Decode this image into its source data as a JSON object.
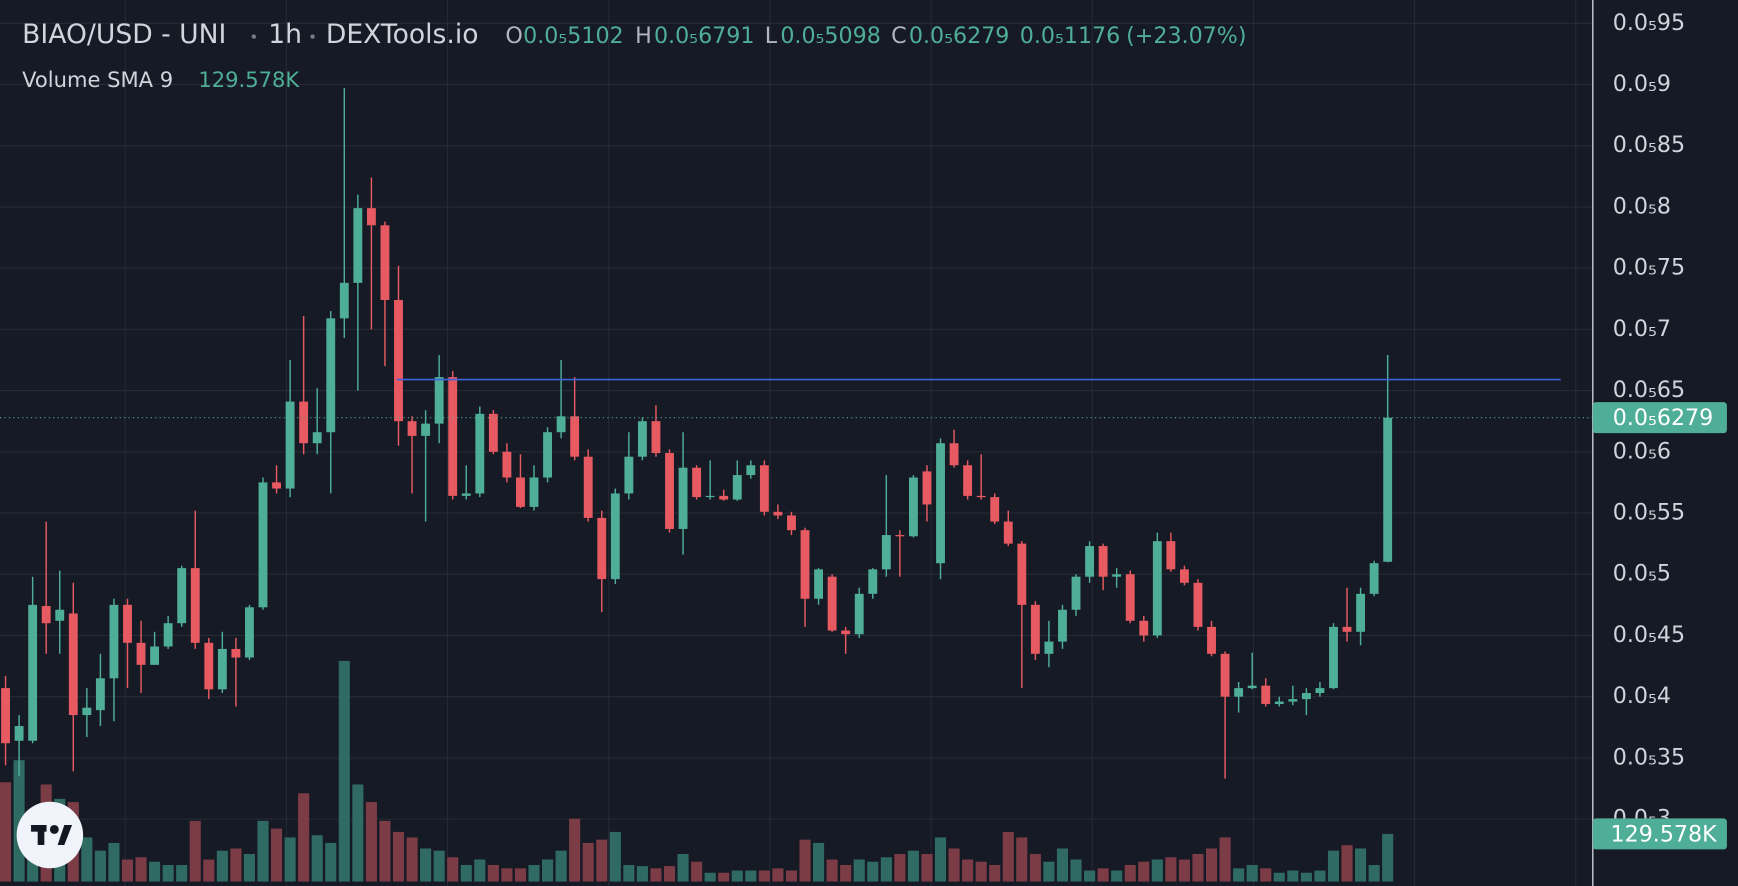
{
  "chart_data": {
    "type": "candlestick",
    "title": "BIAO/USD - UNI",
    "interval": "1h",
    "source": "DEXTools.io",
    "ohlc": [
      {
        "key": "O",
        "value": 5.102e-06,
        "label": "0.0₅5102"
      },
      {
        "key": "H",
        "value": 6.791e-06,
        "label": "0.0₅6791"
      },
      {
        "key": "L",
        "value": 5.098e-06,
        "label": "0.0₅5098"
      },
      {
        "key": "C",
        "value": 6.279e-06,
        "label": "0.0₅6279"
      }
    ],
    "change": {
      "value": 1.176e-06,
      "label": "0.0₅1176"
    },
    "change_percent": {
      "value": 23.07,
      "label": "(+23.07%)"
    },
    "volume_indicator": {
      "name": "Volume SMA 9",
      "value": 129578,
      "label": "129.578K"
    },
    "up_color": "#4fae98",
    "down_color": "#e85a61",
    "up_volume_color": "#2f6b62",
    "down_volume_color": "#7c3c46",
    "hline": {
      "value": 6.59e-06,
      "color": "#3d63dd"
    },
    "ylim": [
      2.49e-06,
      9.69e-06
    ],
    "yticks": [
      {
        "value": 9.5e-06,
        "label": "0.0₅95"
      },
      {
        "value": 9e-06,
        "label": "0.0₅9"
      },
      {
        "value": 8.5e-06,
        "label": "0.0₅85"
      },
      {
        "value": 8e-06,
        "label": "0.0₅8"
      },
      {
        "value": 7.5e-06,
        "label": "0.0₅75"
      },
      {
        "value": 7e-06,
        "label": "0.0₅7"
      },
      {
        "value": 6.5e-06,
        "label": "0.0₅65"
      },
      {
        "value": 6e-06,
        "label": "0.0₅6"
      },
      {
        "value": 5.5e-06,
        "label": "0.0₅55"
      },
      {
        "value": 5e-06,
        "label": "0.0₅5"
      },
      {
        "value": 4.5e-06,
        "label": "0.0₅45"
      },
      {
        "value": 4e-06,
        "label": "0.0₅4"
      },
      {
        "value": 3.5e-06,
        "label": "0.0₅35"
      },
      {
        "value": 3e-06,
        "label": "0.0₅3"
      }
    ],
    "y2lim": [
      0,
      600000
    ],
    "grid": true,
    "open": [
      4.07e-06,
      3.64e-06,
      3.64e-06,
      4.74e-06,
      4.62e-06,
      4.68e-06,
      3.85e-06,
      3.89e-06,
      4.15e-06,
      4.75e-06,
      4.44e-06,
      4.26e-06,
      4.41e-06,
      4.6e-06,
      5.05e-06,
      4.44e-06,
      4.06e-06,
      4.39e-06,
      4.32e-06,
      4.73e-06,
      5.75e-06,
      5.7e-06,
      6.41e-06,
      6.07e-06,
      6.16e-06,
      7.09e-06,
      7.38e-06,
      7.99e-06,
      7.85e-06,
      7.24e-06,
      6.25e-06,
      6.13e-06,
      6.23e-06,
      6.61e-06,
      5.64e-06,
      5.66e-06,
      6.31e-06,
      6e-06,
      5.79e-06,
      5.55e-06,
      5.79e-06,
      6.16e-06,
      6.29e-06,
      5.96e-06,
      5.46e-06,
      4.96e-06,
      5.66e-06,
      5.96e-06,
      6.25e-06,
      5.99e-06,
      5.37e-06,
      5.87e-06,
      5.63e-06,
      5.64e-06,
      5.61e-06,
      5.81e-06,
      5.89e-06,
      5.51e-06,
      5.48e-06,
      5.36e-06,
      4.8e-06,
      4.98e-06,
      4.54e-06,
      4.51e-06,
      4.84e-06,
      5.04e-06,
      5.32e-06,
      5.31e-06,
      5.84e-06,
      5.09e-06,
      6.07e-06,
      5.89e-06,
      5.64e-06,
      5.63e-06,
      5.43e-06,
      5.25e-06,
      4.75e-06,
      4.35e-06,
      4.45e-06,
      4.71e-06,
      4.98e-06,
      5.23e-06,
      4.98e-06,
      5e-06,
      4.62e-06,
      4.5e-06,
      5.27e-06,
      5.04e-06,
      4.93e-06,
      4.57e-06,
      4.35e-06,
      4e-06,
      4.07e-06,
      4.09e-06,
      3.94e-06,
      3.96e-06,
      3.98e-06,
      4.03e-06,
      4.07e-06,
      4.57e-06,
      4.53e-06,
      4.84e-06,
      5.102e-06
    ],
    "high": [
      4.17e-06,
      3.85e-06,
      4.98e-06,
      5.43e-06,
      5.03e-06,
      4.93e-06,
      4.07e-06,
      4.35e-06,
      4.8e-06,
      4.8e-06,
      4.62e-06,
      4.53e-06,
      4.66e-06,
      5.07e-06,
      5.52e-06,
      4.48e-06,
      4.53e-06,
      4.48e-06,
      4.75e-06,
      5.79e-06,
      5.89e-06,
      6.75e-06,
      7.11e-06,
      6.52e-06,
      7.15e-06,
      8.97e-06,
      8.1e-06,
      8.24e-06,
      7.88e-06,
      7.52e-06,
      6.29e-06,
      6.34e-06,
      6.79e-06,
      6.66e-06,
      5.89e-06,
      6.37e-06,
      6.34e-06,
      6.07e-06,
      5.98e-06,
      5.89e-06,
      6.2e-06,
      6.75e-06,
      6.61e-06,
      6.02e-06,
      5.52e-06,
      5.7e-06,
      6.16e-06,
      6.28e-06,
      6.38e-06,
      6.02e-06,
      6.16e-06,
      5.89e-06,
      5.93e-06,
      5.69e-06,
      5.93e-06,
      5.93e-06,
      5.93e-06,
      5.57e-06,
      5.51e-06,
      5.38e-06,
      5.05e-06,
      5e-06,
      4.57e-06,
      4.89e-06,
      5.05e-06,
      5.81e-06,
      5.36e-06,
      5.81e-06,
      5.89e-06,
      6.11e-06,
      6.18e-06,
      5.93e-06,
      5.98e-06,
      5.66e-06,
      5.52e-06,
      5.27e-06,
      4.78e-06,
      4.62e-06,
      4.75e-06,
      5e-06,
      5.27e-06,
      5.25e-06,
      5.05e-06,
      5.03e-06,
      4.66e-06,
      5.34e-06,
      5.34e-06,
      5.07e-06,
      4.96e-06,
      4.62e-06,
      4.37e-06,
      4.12e-06,
      4.36e-06,
      4.15e-06,
      4e-06,
      4.09e-06,
      4.07e-06,
      4.12e-06,
      4.6e-06,
      4.89e-06,
      4.89e-06,
      5.11e-06,
      6.791e-06
    ],
    "low": [
      3.44e-06,
      3.35e-06,
      3.62e-06,
      4.35e-06,
      4.35e-06,
      3.39e-06,
      3.67e-06,
      3.76e-06,
      3.8e-06,
      4.07e-06,
      4.03e-06,
      4.26e-06,
      4.39e-06,
      4.57e-06,
      4.39e-06,
      3.98e-06,
      4.03e-06,
      3.92e-06,
      4.3e-06,
      4.71e-06,
      5.66e-06,
      5.63e-06,
      5.98e-06,
      5.98e-06,
      5.66e-06,
      6.93e-06,
      6.5e-06,
      7e-06,
      6.7e-06,
      6.05e-06,
      5.66e-06,
      5.43e-06,
      6.07e-06,
      5.61e-06,
      5.61e-06,
      5.63e-06,
      5.98e-06,
      5.75e-06,
      5.54e-06,
      5.52e-06,
      5.75e-06,
      6.11e-06,
      5.93e-06,
      5.43e-06,
      4.69e-06,
      4.92e-06,
      5.61e-06,
      5.93e-06,
      5.96e-06,
      5.34e-06,
      5.16e-06,
      5.61e-06,
      5.61e-06,
      5.6e-06,
      5.6e-06,
      5.78e-06,
      5.48e-06,
      5.45e-06,
      5.32e-06,
      4.57e-06,
      4.75e-06,
      4.53e-06,
      4.35e-06,
      4.48e-06,
      4.8e-06,
      4.98e-06,
      4.98e-06,
      5.3e-06,
      5.43e-06,
      4.96e-06,
      5.87e-06,
      5.61e-06,
      5.61e-06,
      5.41e-06,
      5.23e-06,
      4.07e-06,
      4.3e-06,
      4.24e-06,
      4.39e-06,
      4.66e-06,
      4.93e-06,
      4.87e-06,
      4.89e-06,
      4.6e-06,
      4.45e-06,
      4.48e-06,
      5.02e-06,
      4.91e-06,
      4.54e-06,
      4.33e-06,
      3.33e-06,
      3.87e-06,
      4.06e-06,
      3.92e-06,
      3.92e-06,
      3.93e-06,
      3.85e-06,
      4e-06,
      4.06e-06,
      4.45e-06,
      4.42e-06,
      4.82e-06,
      5.098e-06
    ],
    "close": [
      3.62e-06,
      3.76e-06,
      4.75e-06,
      4.6e-06,
      4.71e-06,
      3.85e-06,
      3.91e-06,
      4.15e-06,
      4.75e-06,
      4.44e-06,
      4.26e-06,
      4.41e-06,
      4.6e-06,
      5.05e-06,
      4.44e-06,
      4.06e-06,
      4.39e-06,
      4.32e-06,
      4.73e-06,
      5.75e-06,
      5.7e-06,
      6.41e-06,
      6.07e-06,
      6.16e-06,
      7.09e-06,
      7.38e-06,
      7.99e-06,
      7.85e-06,
      7.24e-06,
      6.25e-06,
      6.13e-06,
      6.23e-06,
      6.61e-06,
      5.64e-06,
      5.66e-06,
      6.31e-06,
      6e-06,
      5.79e-06,
      5.55e-06,
      5.79e-06,
      6.16e-06,
      6.29e-06,
      5.96e-06,
      5.46e-06,
      4.96e-06,
      5.66e-06,
      5.96e-06,
      6.25e-06,
      5.99e-06,
      5.37e-06,
      5.87e-06,
      5.63e-06,
      5.64e-06,
      5.61e-06,
      5.81e-06,
      5.89e-06,
      5.51e-06,
      5.48e-06,
      5.36e-06,
      4.8e-06,
      5.04e-06,
      4.54e-06,
      4.51e-06,
      4.84e-06,
      5.04e-06,
      5.32e-06,
      5.31e-06,
      5.79e-06,
      5.57e-06,
      6.07e-06,
      5.89e-06,
      5.64e-06,
      5.63e-06,
      5.43e-06,
      5.25e-06,
      4.75e-06,
      4.35e-06,
      4.45e-06,
      4.71e-06,
      4.98e-06,
      5.23e-06,
      4.98e-06,
      5e-06,
      4.62e-06,
      4.5e-06,
      5.27e-06,
      5.04e-06,
      4.93e-06,
      4.57e-06,
      4.35e-06,
      4e-06,
      4.07e-06,
      4.09e-06,
      3.94e-06,
      3.96e-06,
      3.98e-06,
      4.03e-06,
      4.07e-06,
      4.57e-06,
      4.53e-06,
      4.84e-06,
      5.09e-06,
      6.279e-06
    ],
    "volume": [
      270000,
      330000,
      180000,
      264000,
      225000,
      216000,
      120000,
      84000,
      105000,
      60000,
      66000,
      54000,
      45000,
      45000,
      165000,
      60000,
      84000,
      90000,
      75000,
      165000,
      144000,
      120000,
      240000,
      126000,
      105000,
      600000,
      264000,
      216000,
      165000,
      135000,
      120000,
      90000,
      84000,
      66000,
      45000,
      60000,
      45000,
      36000,
      36000,
      45000,
      60000,
      84000,
      171000,
      105000,
      114000,
      135000,
      45000,
      42000,
      36000,
      42000,
      75000,
      54000,
      24000,
      24000,
      30000,
      30000,
      30000,
      36000,
      30000,
      114000,
      105000,
      60000,
      45000,
      60000,
      54000,
      66000,
      75000,
      84000,
      75000,
      120000,
      90000,
      60000,
      54000,
      45000,
      135000,
      120000,
      75000,
      54000,
      90000,
      60000,
      30000,
      36000,
      30000,
      45000,
      54000,
      60000,
      66000,
      60000,
      75000,
      90000,
      120000,
      36000,
      45000,
      36000,
      24000,
      30000,
      24000,
      30000,
      84000,
      99000,
      90000,
      45000,
      129578
    ]
  }
}
